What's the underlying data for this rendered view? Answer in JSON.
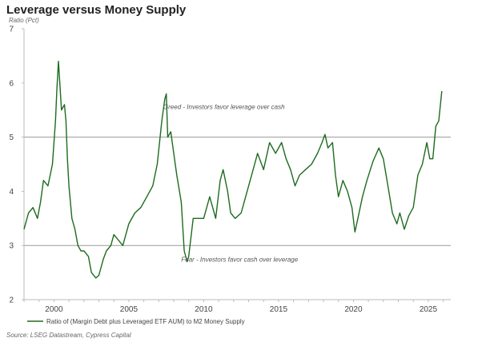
{
  "chart_data": {
    "type": "line",
    "title": "Leverage versus Money Supply",
    "ylabel": "Ratio (Pct)",
    "xlabel": "",
    "xlim": [
      1998,
      2026.5
    ],
    "ylim": [
      2,
      7
    ],
    "x_ticks": [
      2000,
      2005,
      2010,
      2015,
      2020,
      2025
    ],
    "y_ticks": [
      2,
      3,
      4,
      5,
      6,
      7
    ],
    "reference_lines": [
      5,
      3
    ],
    "annotations": [
      {
        "text": "Greed - Investors favor leverage over cash",
        "x": 2007.3,
        "y": 5.52
      },
      {
        "text": "Fear - Investors favor cash over leverage",
        "x": 2008.5,
        "y": 2.7
      }
    ],
    "legend": "Ratio of (Margin Debt plus Leveraged ETF AUM) to M2 Money Supply",
    "legend_position": "bottom-left",
    "line_color": "#1e6b1e",
    "source": "Source: LSEG Datastream, Cypress Capital",
    "series": [
      {
        "name": "Ratio of (Margin Debt plus Leveraged ETF AUM) to M2 Money Supply",
        "x": [
          1998.0,
          1998.3,
          1998.6,
          1998.9,
          1999.1,
          1999.3,
          1999.6,
          1999.9,
          2000.1,
          2000.2,
          2000.3,
          2000.5,
          2000.7,
          2000.8,
          2000.9,
          2001.0,
          2001.2,
          2001.4,
          2001.6,
          2001.8,
          2002.0,
          2002.3,
          2002.5,
          2002.8,
          2003.0,
          2003.3,
          2003.5,
          2003.8,
          2004.0,
          2004.3,
          2004.6,
          2005.0,
          2005.4,
          2005.8,
          2006.2,
          2006.6,
          2006.9,
          2007.2,
          2007.4,
          2007.5,
          2007.6,
          2007.8,
          2008.0,
          2008.2,
          2008.5,
          2008.7,
          2008.9,
          2009.0,
          2009.3,
          2009.6,
          2010.0,
          2010.4,
          2010.8,
          2011.1,
          2011.3,
          2011.6,
          2011.8,
          2012.1,
          2012.5,
          2012.8,
          2013.2,
          2013.6,
          2014.0,
          2014.4,
          2014.8,
          2015.2,
          2015.5,
          2015.8,
          2016.1,
          2016.4,
          2016.8,
          2017.2,
          2017.6,
          2017.9,
          2018.1,
          2018.3,
          2018.6,
          2018.8,
          2019.0,
          2019.3,
          2019.6,
          2019.9,
          2020.1,
          2020.3,
          2020.6,
          2020.9,
          2021.3,
          2021.7,
          2022.0,
          2022.3,
          2022.6,
          2022.9,
          2023.1,
          2023.4,
          2023.7,
          2024.0,
          2024.3,
          2024.6,
          2024.9,
          2025.1,
          2025.3,
          2025.5,
          2025.7,
          2025.9
        ],
        "values": [
          3.3,
          3.6,
          3.7,
          3.5,
          3.8,
          4.2,
          4.1,
          4.5,
          5.3,
          5.9,
          6.4,
          5.5,
          5.6,
          5.3,
          4.6,
          4.1,
          3.5,
          3.3,
          3.0,
          2.9,
          2.9,
          2.8,
          2.5,
          2.4,
          2.45,
          2.75,
          2.9,
          3.0,
          3.2,
          3.1,
          3.0,
          3.4,
          3.6,
          3.7,
          3.9,
          4.1,
          4.5,
          5.3,
          5.7,
          5.8,
          5.0,
          5.1,
          4.7,
          4.3,
          3.8,
          2.9,
          2.7,
          2.8,
          3.5,
          3.5,
          3.5,
          3.9,
          3.5,
          4.2,
          4.4,
          4.0,
          3.6,
          3.5,
          3.6,
          3.9,
          4.3,
          4.7,
          4.4,
          4.9,
          4.7,
          4.9,
          4.6,
          4.4,
          4.1,
          4.3,
          4.4,
          4.5,
          4.7,
          4.9,
          5.05,
          4.8,
          4.9,
          4.3,
          3.9,
          4.2,
          4.0,
          3.7,
          3.25,
          3.5,
          3.9,
          4.2,
          4.55,
          4.8,
          4.6,
          4.1,
          3.6,
          3.4,
          3.6,
          3.3,
          3.55,
          3.7,
          4.3,
          4.5,
          4.9,
          4.6,
          4.6,
          5.2,
          5.3,
          5.85
        ]
      }
    ]
  }
}
